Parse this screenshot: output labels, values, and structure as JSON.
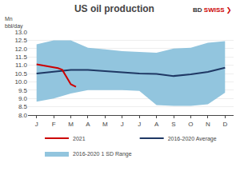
{
  "chart_data": {
    "type": "line",
    "title": "US oil production",
    "y_label": "Mn\nbbl/day",
    "annotations": [
      {
        "text": "BD",
        "color": "#333333"
      },
      {
        "text": "SWISS",
        "color": "#CC0000"
      },
      {
        "text": "❯",
        "color": "#CC0000"
      }
    ],
    "xlim": [
      -0.5,
      11.5
    ],
    "xticks": [
      {
        "value": 0,
        "label": "J"
      },
      {
        "value": 1,
        "label": "F"
      },
      {
        "value": 2,
        "label": "M"
      },
      {
        "value": 3,
        "label": "A"
      },
      {
        "value": 4,
        "label": "M"
      },
      {
        "value": 5,
        "label": "J"
      },
      {
        "value": 6,
        "label": "J"
      },
      {
        "value": 7,
        "label": "A"
      },
      {
        "value": 8,
        "label": "S"
      },
      {
        "value": 9,
        "label": "O"
      },
      {
        "value": 10,
        "label": "N"
      },
      {
        "value": 11,
        "label": "D"
      }
    ],
    "ylim": [
      8.0,
      13.0
    ],
    "yticks": [
      {
        "value": 8.0,
        "label": "8.0"
      },
      {
        "value": 8.5,
        "label": "8.5"
      },
      {
        "value": 9.0,
        "label": "9.0"
      },
      {
        "value": 9.5,
        "label": "9.5"
      },
      {
        "value": 10.0,
        "label": "10.0"
      },
      {
        "value": 10.5,
        "label": "10.5"
      },
      {
        "value": 11.0,
        "label": "11.0"
      },
      {
        "value": 11.5,
        "label": "11.5"
      },
      {
        "value": 12.0,
        "label": "12.0"
      },
      {
        "value": 12.5,
        "label": "12.5"
      },
      {
        "value": 13.0,
        "label": "13.0"
      }
    ],
    "grid": true,
    "legend": "bottom",
    "series": [
      {
        "name": "2016-2020 1 SD Range",
        "type": "band",
        "color": "#92C5DE",
        "x": [
          0,
          1,
          2,
          3,
          4,
          5,
          6,
          7,
          8,
          9,
          10,
          11
        ],
        "lower": [
          8.8,
          9.0,
          9.3,
          9.5,
          9.5,
          9.5,
          9.45,
          8.6,
          8.55,
          8.55,
          8.65,
          9.35
        ],
        "upper": [
          12.25,
          12.5,
          12.5,
          12.05,
          11.95,
          11.85,
          11.8,
          11.75,
          12.0,
          12.05,
          12.35,
          12.45
        ]
      },
      {
        "name": "2016-2020 Average",
        "type": "line",
        "color": "#1F3864",
        "x": [
          0,
          1,
          2,
          3,
          4,
          5,
          6,
          7,
          8,
          9,
          10,
          11
        ],
        "values": [
          10.5,
          10.6,
          10.72,
          10.72,
          10.65,
          10.55,
          10.5,
          10.48,
          10.35,
          10.45,
          10.6,
          10.85
        ]
      },
      {
        "name": "2021",
        "type": "line",
        "color": "#CC0000",
        "x": [
          0,
          0.25,
          0.5,
          0.75,
          1.0,
          1.25,
          1.5,
          1.75,
          2.0,
          2.3
        ],
        "values": [
          11.05,
          11.0,
          10.95,
          10.92,
          10.88,
          10.82,
          10.72,
          10.3,
          9.85,
          9.7
        ]
      }
    ]
  }
}
